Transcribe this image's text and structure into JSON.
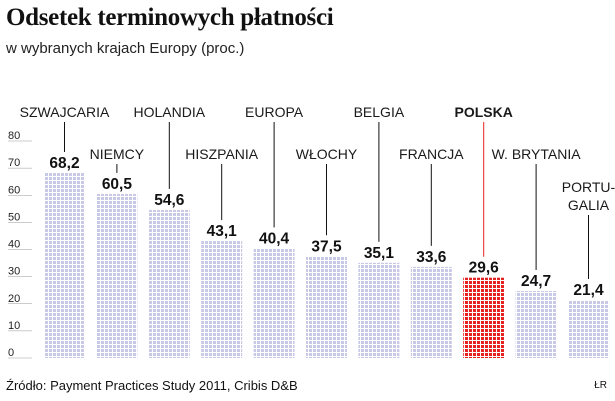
{
  "title": "Odsetek terminowych płatności",
  "subtitle": "w wybranych krajach Europy (proc.)",
  "source": "Źródło: Payment Practices Study 2011, Cribis D&B",
  "credit": "ŁR",
  "colors": {
    "bar": "#c8c9e6",
    "bar_grid": "#ffffff",
    "highlight": "#e52222",
    "leader": "#111111",
    "axis_line": "#999999"
  },
  "chart_data": {
    "type": "bar",
    "title": "Odsetek terminowych płatności",
    "subtitle": "w wybranych krajach Europy (proc.)",
    "xlabel": "",
    "ylabel": "",
    "ylim": [
      0,
      80
    ],
    "yticks": [
      0,
      10,
      20,
      30,
      40,
      50,
      60,
      70,
      80
    ],
    "grid": false,
    "legend": "none",
    "categories": [
      "SZWAJCARIA",
      "NIEMCY",
      "HOLANDIA",
      "HISZPANIA",
      "EUROPA",
      "WŁOCHY",
      "BELGIA",
      "FRANCJA",
      "POLSKA",
      "W. BRYTANIA",
      "PORTU-GALIA"
    ],
    "category_lines": [
      [
        "SZWAJCARIA"
      ],
      [
        "NIEMCY"
      ],
      [
        "HOLANDIA"
      ],
      [
        "HISZPANIA"
      ],
      [
        "EUROPA"
      ],
      [
        "WŁOCHY"
      ],
      [
        "BELGIA"
      ],
      [
        "FRANCJA"
      ],
      [
        "POLSKA"
      ],
      [
        "W. BRYTANIA"
      ],
      [
        "PORTU-",
        "GALIA"
      ]
    ],
    "value_labels": [
      "68,2",
      "60,5",
      "54,6",
      "43,1",
      "40,4",
      "37,5",
      "35,1",
      "33,6",
      "29,6",
      "24,7",
      "21,4"
    ],
    "values": [
      68.2,
      60.5,
      54.6,
      43.1,
      40.4,
      37.5,
      35.1,
      33.6,
      29.6,
      24.7,
      21.4
    ],
    "highlight": "POLSKA"
  }
}
